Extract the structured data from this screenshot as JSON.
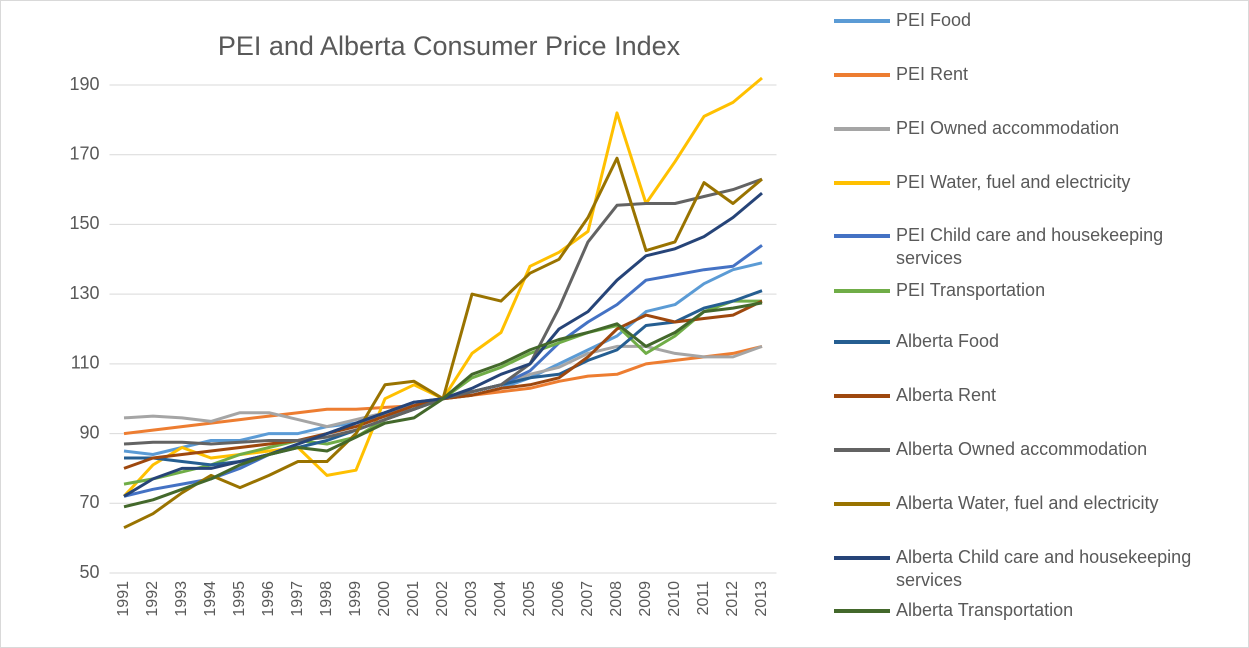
{
  "chart_data": {
    "type": "line",
    "title": "PEI and Alberta Consumer Price Index",
    "categories": [
      "1991",
      "1992",
      "1993",
      "1994",
      "1995",
      "1996",
      "1997",
      "1998",
      "1999",
      "2000",
      "2001",
      "2002",
      "2003",
      "2004",
      "2005",
      "2006",
      "2007",
      "2008",
      "2009",
      "2010",
      "2011",
      "2012",
      "2013"
    ],
    "ylim": [
      50,
      200
    ],
    "yticks": [
      50,
      70,
      90,
      110,
      130,
      150,
      170,
      190
    ],
    "grid": true,
    "legend": "right",
    "series": [
      {
        "name": "PEI Food",
        "color": "#5b9bd5",
        "values": [
          85,
          84,
          86,
          88,
          88,
          90,
          90,
          92,
          93,
          95,
          97,
          100,
          101,
          103,
          106,
          110,
          114,
          118,
          125,
          127,
          133,
          137,
          139
        ]
      },
      {
        "name": "PEI Rent",
        "color": "#ed7d31",
        "values": [
          90,
          91,
          92,
          93,
          94,
          95,
          96,
          97,
          97,
          97.5,
          98,
          100,
          101,
          102,
          103,
          105,
          106.5,
          107,
          110,
          111,
          112,
          113,
          115
        ]
      },
      {
        "name": "PEI Owned accommodation",
        "color": "#a5a5a5",
        "values": [
          94.5,
          95,
          94.5,
          93.5,
          96,
          96,
          94,
          92,
          94,
          96,
          98,
          100,
          102,
          104,
          107,
          109,
          113,
          115,
          115,
          113,
          112,
          112,
          115
        ]
      },
      {
        "name": "PEI Water, fuel and electricity",
        "color": "#ffc000",
        "values": [
          72,
          81,
          86,
          83,
          84,
          85,
          86,
          78,
          79.5,
          100,
          104,
          100,
          113,
          119,
          138,
          142,
          148,
          182,
          156,
          168,
          181,
          185,
          192
        ]
      },
      {
        "name": "PEI Child care and housekeeping services",
        "color": "#4472c4",
        "values": [
          72,
          74,
          75.5,
          77,
          80,
          84,
          87,
          90,
          93,
          96,
          99,
          100,
          102,
          104,
          108,
          116,
          122,
          127,
          134,
          135.5,
          137,
          138,
          144
        ]
      },
      {
        "name": "PEI Transportation",
        "color": "#70ad47",
        "values": [
          75.5,
          77,
          79,
          81,
          84,
          86,
          88,
          87,
          89,
          94,
          97,
          100,
          106,
          109,
          113,
          116,
          119,
          121,
          113,
          118,
          125,
          128,
          128
        ]
      },
      {
        "name": "Alberta Food",
        "color": "#255e91",
        "values": [
          83,
          83,
          82,
          81,
          82,
          84,
          86,
          88,
          91,
          94,
          97,
          100,
          102,
          104,
          106,
          107,
          111,
          114,
          121,
          122,
          126,
          128,
          131
        ]
      },
      {
        "name": "Alberta Rent",
        "color": "#9e480e",
        "values": [
          80,
          83,
          84,
          85,
          86,
          87,
          88,
          90,
          92,
          95,
          98,
          100,
          101,
          103,
          104,
          106,
          112,
          120,
          124,
          122,
          123,
          124,
          128
        ]
      },
      {
        "name": "Alberta Owned accommodation",
        "color": "#636363",
        "values": [
          87,
          87.5,
          87.5,
          87,
          87.5,
          88,
          88,
          89,
          91,
          94,
          97,
          100,
          102,
          104,
          110,
          126,
          145,
          155.5,
          156,
          156,
          158,
          160,
          163
        ]
      },
      {
        "name": "Alberta Water, fuel and electricity",
        "color": "#997300",
        "values": [
          63,
          67,
          73,
          78,
          74.5,
          78,
          82,
          82,
          90,
          104,
          105,
          100,
          130,
          128,
          136,
          140,
          152,
          169,
          142.5,
          145,
          162,
          156,
          163
        ]
      },
      {
        "name": "Alberta Child care and housekeeping services",
        "color": "#264478",
        "values": [
          72,
          77,
          80,
          80,
          82,
          84,
          87,
          90,
          93,
          96,
          99,
          100,
          103,
          107,
          110,
          120,
          125,
          134,
          141,
          143,
          146.5,
          152,
          159
        ]
      },
      {
        "name": "Alberta Transportation",
        "color": "#43682b",
        "values": [
          69,
          71,
          74,
          77,
          81,
          84,
          86,
          85,
          89,
          93,
          94.5,
          100,
          107,
          110,
          114,
          117,
          119,
          121.5,
          115,
          119,
          125,
          126,
          127.5
        ]
      }
    ]
  }
}
